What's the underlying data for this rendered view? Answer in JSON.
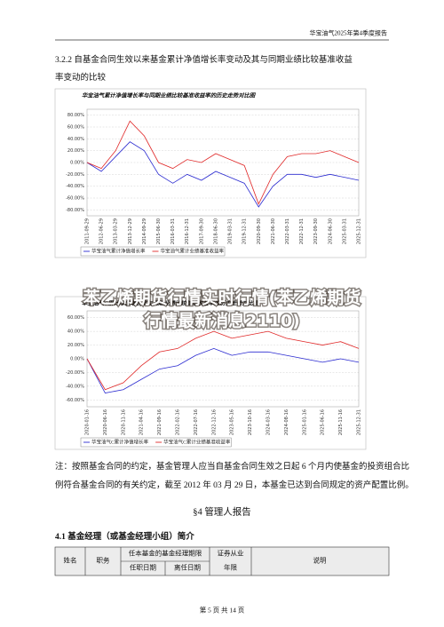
{
  "header": {
    "title": "华宝油气2025年第4季度报告"
  },
  "section": {
    "title_line1": "3.2.2 自基金合同生效以来基金累计净值增长率变动及其与同期业绩比较基准收益",
    "title_line2": "率变动的比较"
  },
  "chart_data": [
    {
      "type": "line",
      "title": "华宝油气累计净值增长率与同期业绩比较基准收益率的历史走势对比图",
      "categories": [
        "2011-09-29",
        "2012-06-29",
        "2013-03-29",
        "2013-12-29",
        "2014-09-29",
        "2015-06-30",
        "2016-03-31",
        "2016-12-31",
        "2017-09-30",
        "2018-06-30",
        "2019-03-31",
        "2019-12-31",
        "2020-09-30",
        "2021-06-30",
        "2022-03-31",
        "2022-12-31",
        "2023-09-30",
        "2024-06-30",
        "2025-03-31",
        "2025-12-31"
      ],
      "series": [
        {
          "name": "华宝油气累计净值增长率",
          "color": "#2a2ad0",
          "values": [
            0,
            -15,
            10,
            35,
            20,
            -20,
            -35,
            -20,
            -30,
            -15,
            -25,
            -35,
            -75,
            -40,
            -20,
            -20,
            -25,
            -20,
            -25,
            -30
          ]
        },
        {
          "name": "华宝油气累计业绩基准收益率",
          "color": "#e02828",
          "values": [
            0,
            -10,
            20,
            70,
            45,
            0,
            -10,
            5,
            0,
            15,
            5,
            -5,
            -70,
            -20,
            10,
            15,
            15,
            20,
            10,
            0
          ]
        }
      ],
      "ylim": [
        -90,
        90
      ],
      "yticks": [
        {
          "value": 80,
          "label": "80.00%"
        },
        {
          "value": 60,
          "label": "60.00%"
        },
        {
          "value": 40,
          "label": "40.00%"
        },
        {
          "value": 20,
          "label": "20.00%"
        },
        {
          "value": 0,
          "label": "0.00%"
        },
        {
          "value": -20,
          "label": "-20.00%"
        },
        {
          "value": -40,
          "label": "-40.00%"
        },
        {
          "value": -60,
          "label": "-60.00%"
        },
        {
          "value": -80,
          "label": "-80.00%"
        }
      ],
      "grid": true
    },
    {
      "type": "line",
      "title": "华宝油气C累计净值增长率与同期业绩比较基准收益率的历史走势对比图",
      "categories": [
        "2020-01-16",
        "2020-06-16",
        "2020-11-16",
        "2021-04-16",
        "2021-09-16",
        "2022-02-16",
        "2022-07-16",
        "2022-12-16",
        "2023-05-16",
        "2023-10-16",
        "2024-03-16",
        "2024-08-16",
        "2025-01-16",
        "2025-06-16",
        "2025-11-16",
        "2025-12-31"
      ],
      "series": [
        {
          "name": "华宝油气C累计净值增长率",
          "color": "#2a2ad0",
          "values": [
            0,
            -50,
            -45,
            -30,
            -15,
            -10,
            5,
            15,
            5,
            10,
            10,
            5,
            0,
            -5,
            0,
            -5
          ]
        },
        {
          "name": "华宝油气C累计业绩基准收益率",
          "color": "#e02828",
          "values": [
            0,
            -45,
            -35,
            -10,
            10,
            15,
            30,
            40,
            30,
            35,
            40,
            30,
            25,
            20,
            25,
            15
          ]
        }
      ],
      "ylim": [
        -70,
        70
      ],
      "yticks": [
        {
          "value": 60,
          "label": "60.00%"
        },
        {
          "value": 40,
          "label": "40.00%"
        },
        {
          "value": 20,
          "label": "20.00%"
        },
        {
          "value": 0,
          "label": "0.00%"
        },
        {
          "value": -20,
          "label": "-20.00%"
        },
        {
          "value": -40,
          "label": "-40.00%"
        },
        {
          "value": -60,
          "label": "-60.00%"
        }
      ],
      "grid": true
    }
  ],
  "overlay": {
    "line1": "苯乙烯期货行情实时行情(苯乙烯期货",
    "line2": "行情最新消息2110)"
  },
  "note": {
    "line1": "注：按照基金合同的约定，基金管理人应当自基金合同生效之日起 6 个月内使基金的投资组合比",
    "line2": "例符合基金合同的有关约定，截至 2012 年 03 月 29 日，本基金已达到合同规定的资产配置比例。"
  },
  "chapter": {
    "title": "§4 管理人报告"
  },
  "subsection": {
    "title": "4.1 基金经理（或基金经理小组）简介"
  },
  "table": {
    "headers": {
      "name": "姓名",
      "position": "职务",
      "term": "任本基金的基金经理期限",
      "start": "任职日期",
      "end": "离任日期",
      "years": [
        "证券从业",
        "年限"
      ],
      "description": "说明"
    }
  },
  "footer": {
    "page": "第 5 页 共 14 页"
  }
}
